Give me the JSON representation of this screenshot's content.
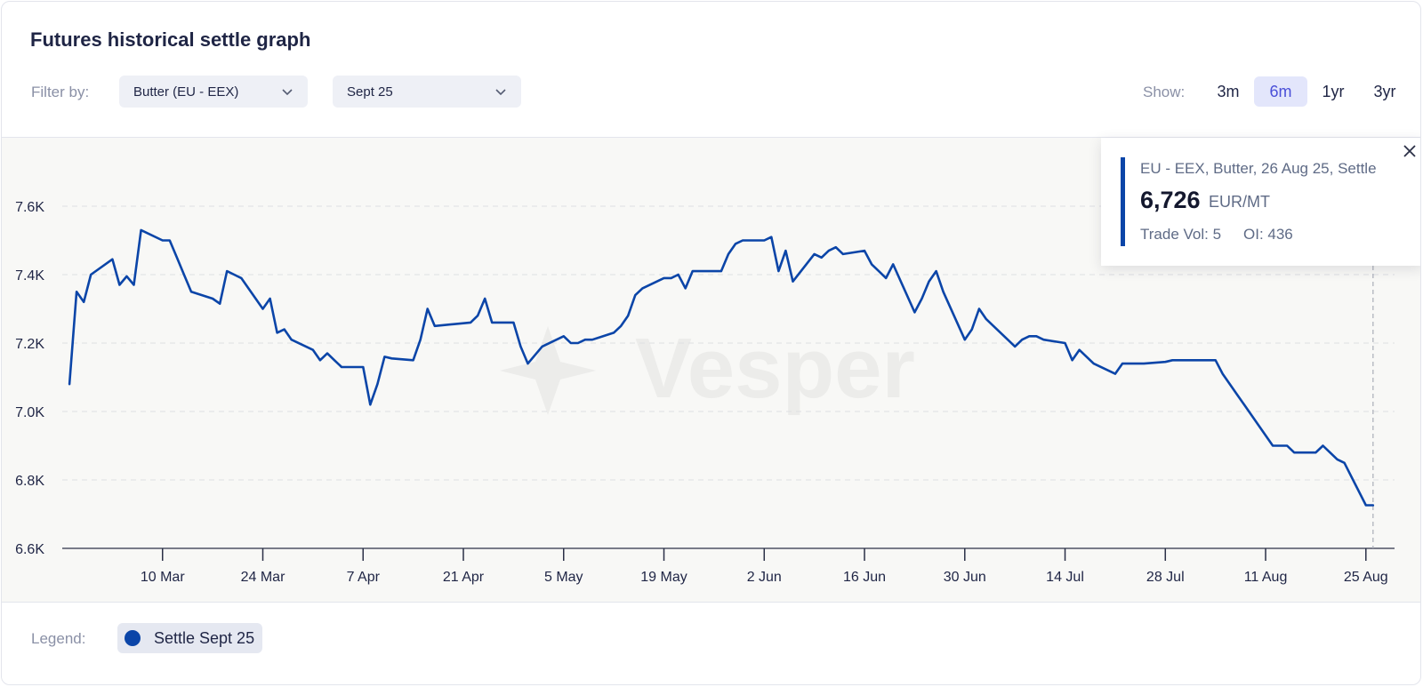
{
  "title": "Futures historical settle graph",
  "filters": {
    "label": "Filter by:",
    "product": "Butter (EU - EEX)",
    "contract": "Sept 25",
    "dropdown_icon": "chevron-down-icon"
  },
  "range": {
    "label": "Show:",
    "options": [
      "3m",
      "6m",
      "1yr",
      "3yr"
    ],
    "selected": "6m"
  },
  "tooltip": {
    "heading": "EU - EEX, Butter, 26 Aug 25, Settle",
    "value": "6,726",
    "unit": "EUR/MT",
    "trade_vol": "Trade Vol: 5",
    "oi": "OI: 436",
    "close_icon": "close-icon"
  },
  "watermark": "Vesper",
  "legend": {
    "label": "Legend:",
    "items": [
      {
        "name": "Settle Sept 25",
        "color": "#0b45a8"
      }
    ]
  },
  "colors": {
    "series": "#0b45a8",
    "selected_range_bg": "#e3e6fb",
    "selected_range_text": "#4a4fd8"
  },
  "chart_data": {
    "type": "line",
    "title": "Futures historical settle graph",
    "xlabel": "",
    "ylabel": "",
    "ylim": [
      6600,
      7800
    ],
    "xlim": [
      "2025-02-24",
      "2025-08-29"
    ],
    "y_ticks": [
      6600,
      6800,
      7000,
      7200,
      7400,
      7600
    ],
    "y_tick_labels": [
      "6.6K",
      "6.8K",
      "7.0K",
      "7.2K",
      "7.4K",
      "7.6K"
    ],
    "x_ticks": [
      "2025-03-10",
      "2025-03-24",
      "2025-04-07",
      "2025-04-21",
      "2025-05-05",
      "2025-05-19",
      "2025-06-02",
      "2025-06-16",
      "2025-06-30",
      "2025-07-14",
      "2025-07-28",
      "2025-08-11",
      "2025-08-25"
    ],
    "x_tick_labels": [
      "10 Mar",
      "24 Mar",
      "7 Apr",
      "21 Apr",
      "5 May",
      "19 May",
      "2 Jun",
      "16 Jun",
      "30 Jun",
      "14 Jul",
      "28 Jul",
      "11 Aug",
      "25 Aug"
    ],
    "grid": "horizontal dashed",
    "legend_position": "bottom-left",
    "hover_date": "2025-08-26",
    "series": [
      {
        "name": "Settle Sept 25",
        "color": "#0b45a8",
        "x": [
          "2025-02-25",
          "2025-02-26",
          "2025-02-27",
          "2025-02-28",
          "2025-03-03",
          "2025-03-04",
          "2025-03-05",
          "2025-03-06",
          "2025-03-07",
          "2025-03-10",
          "2025-03-11",
          "2025-03-12",
          "2025-03-13",
          "2025-03-14",
          "2025-03-17",
          "2025-03-18",
          "2025-03-19",
          "2025-03-20",
          "2025-03-21",
          "2025-03-24",
          "2025-03-25",
          "2025-03-26",
          "2025-03-27",
          "2025-03-28",
          "2025-03-31",
          "2025-04-01",
          "2025-04-02",
          "2025-04-03",
          "2025-04-04",
          "2025-04-07",
          "2025-04-08",
          "2025-04-09",
          "2025-04-10",
          "2025-04-11",
          "2025-04-14",
          "2025-04-15",
          "2025-04-16",
          "2025-04-17",
          "2025-04-22",
          "2025-04-23",
          "2025-04-24",
          "2025-04-25",
          "2025-04-28",
          "2025-04-29",
          "2025-04-30",
          "2025-05-02",
          "2025-05-05",
          "2025-05-06",
          "2025-05-07",
          "2025-05-08",
          "2025-05-09",
          "2025-05-12",
          "2025-05-13",
          "2025-05-14",
          "2025-05-15",
          "2025-05-16",
          "2025-05-19",
          "2025-05-20",
          "2025-05-21",
          "2025-05-22",
          "2025-05-23",
          "2025-05-26",
          "2025-05-27",
          "2025-05-28",
          "2025-05-29",
          "2025-05-30",
          "2025-06-02",
          "2025-06-03",
          "2025-06-04",
          "2025-06-05",
          "2025-06-06",
          "2025-06-09",
          "2025-06-10",
          "2025-06-11",
          "2025-06-12",
          "2025-06-13",
          "2025-06-16",
          "2025-06-17",
          "2025-06-18",
          "2025-06-19",
          "2025-06-20",
          "2025-06-23",
          "2025-06-24",
          "2025-06-25",
          "2025-06-26",
          "2025-06-27",
          "2025-06-30",
          "2025-07-01",
          "2025-07-02",
          "2025-07-03",
          "2025-07-04",
          "2025-07-07",
          "2025-07-08",
          "2025-07-09",
          "2025-07-10",
          "2025-07-11",
          "2025-07-14",
          "2025-07-15",
          "2025-07-16",
          "2025-07-17",
          "2025-07-18",
          "2025-07-21",
          "2025-07-22",
          "2025-07-23",
          "2025-07-24",
          "2025-07-25",
          "2025-07-28",
          "2025-07-29",
          "2025-07-30",
          "2025-07-31",
          "2025-08-01",
          "2025-08-04",
          "2025-08-05",
          "2025-08-06",
          "2025-08-07",
          "2025-08-08",
          "2025-08-11",
          "2025-08-12",
          "2025-08-13",
          "2025-08-14",
          "2025-08-15",
          "2025-08-18",
          "2025-08-19",
          "2025-08-20",
          "2025-08-21",
          "2025-08-22",
          "2025-08-25",
          "2025-08-26"
        ],
        "y": [
          7080,
          7350,
          7320,
          7400,
          7445,
          7370,
          7395,
          7370,
          7530,
          7500,
          7500,
          7450,
          7400,
          7350,
          7330,
          7315,
          7410,
          7400,
          7390,
          7300,
          7330,
          7230,
          7240,
          7210,
          7180,
          7150,
          7170,
          7150,
          7130,
          7130,
          7020,
          7080,
          7160,
          7155,
          7150,
          7210,
          7300,
          7250,
          7260,
          7280,
          7330,
          7260,
          7260,
          7190,
          7140,
          7190,
          7220,
          7200,
          7200,
          7210,
          7210,
          7230,
          7250,
          7280,
          7340,
          7360,
          7390,
          7390,
          7400,
          7360,
          7410,
          7410,
          7410,
          7460,
          7490,
          7500,
          7500,
          7510,
          7410,
          7470,
          7380,
          7460,
          7450,
          7470,
          7480,
          7460,
          7470,
          7430,
          7410,
          7390,
          7430,
          7290,
          7330,
          7380,
          7410,
          7350,
          7210,
          7240,
          7300,
          7270,
          7250,
          7190,
          7210,
          7220,
          7220,
          7210,
          7200,
          7150,
          7180,
          7160,
          7140,
          7110,
          7140,
          7140,
          7140,
          7140,
          7145,
          7150,
          7150,
          7150,
          7150,
          7150,
          7110,
          7080,
          7050,
          7020,
          6930,
          6900,
          6900,
          6900,
          6880,
          6880,
          6900,
          6880,
          6860,
          6850,
          6726,
          6726
        ]
      }
    ]
  }
}
